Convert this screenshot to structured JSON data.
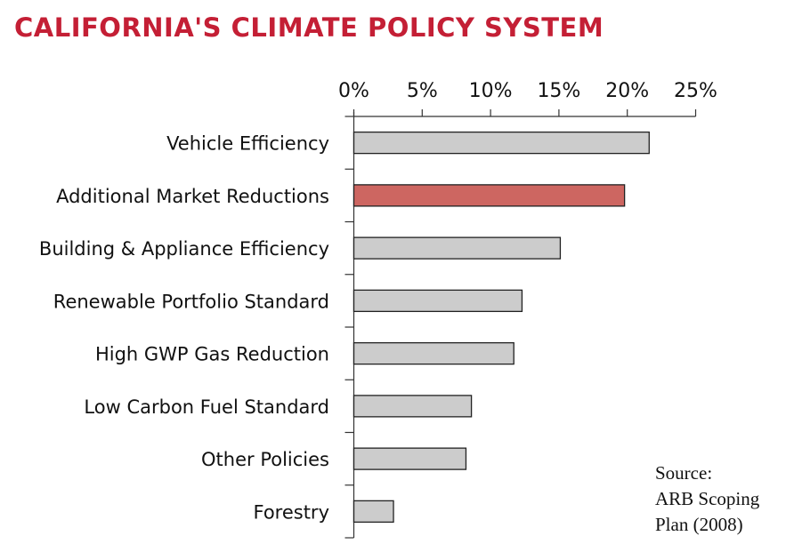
{
  "chart_data": {
    "type": "bar",
    "orientation": "horizontal",
    "title": "CALIFORNIA'S CLIMATE POLICY SYSTEM",
    "categories": [
      "Vehicle Efficiency",
      "Additional Market Reductions",
      "Building & Appliance Efficiency",
      "Renewable Portfolio Standard",
      "High GWP Gas Reduction",
      "Low Carbon Fuel Standard",
      "Other Policies",
      "Forestry"
    ],
    "values": [
      21.6,
      19.8,
      15.1,
      12.3,
      11.7,
      8.6,
      8.2,
      2.9
    ],
    "highlight_index": 1,
    "xlim": [
      0,
      25
    ],
    "xticks": [
      0,
      5,
      10,
      15,
      20,
      25
    ],
    "xtick_labels": [
      "0%",
      "5%",
      "10%",
      "15%",
      "20%",
      "25%"
    ],
    "axis_position": "top",
    "grid": false,
    "colors": {
      "bar": "#cccccc",
      "highlight": "#cd6661",
      "title": "#c41f35",
      "outline": "#222222"
    },
    "source_lines": [
      "Source:",
      "ARB Scoping",
      "Plan (2008)"
    ]
  }
}
